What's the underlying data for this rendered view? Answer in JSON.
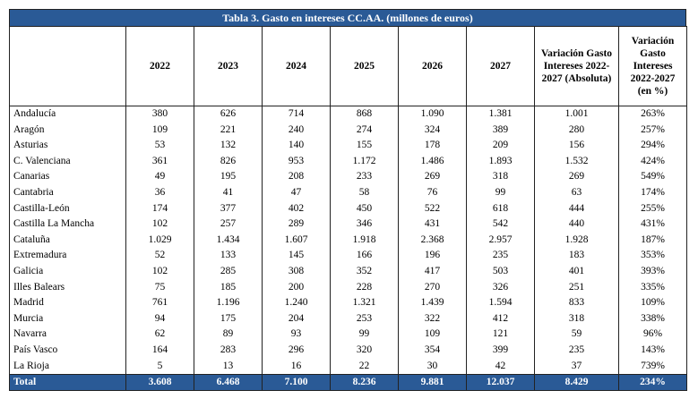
{
  "title": "Tabla 3. Gasto en intereses CC.AA. (millones de euros)",
  "columns": [
    "",
    "2022",
    "2023",
    "2024",
    "2025",
    "2026",
    "2027",
    "Variación Gasto Intereses 2022-2027 (Absoluta)",
    "Variación Gasto Intereses 2022-2027 (en %)"
  ],
  "rows": [
    {
      "name": "Andalucía",
      "values": [
        "380",
        "626",
        "714",
        "868",
        "1.090",
        "1.381",
        "1.001",
        "263%"
      ]
    },
    {
      "name": "Aragón",
      "values": [
        "109",
        "221",
        "240",
        "274",
        "324",
        "389",
        "280",
        "257%"
      ]
    },
    {
      "name": "Asturias",
      "values": [
        "53",
        "132",
        "140",
        "155",
        "178",
        "209",
        "156",
        "294%"
      ]
    },
    {
      "name": "C. Valenciana",
      "values": [
        "361",
        "826",
        "953",
        "1.172",
        "1.486",
        "1.893",
        "1.532",
        "424%"
      ]
    },
    {
      "name": "Canarias",
      "values": [
        "49",
        "195",
        "208",
        "233",
        "269",
        "318",
        "269",
        "549%"
      ]
    },
    {
      "name": "Cantabria",
      "values": [
        "36",
        "41",
        "47",
        "58",
        "76",
        "99",
        "63",
        "174%"
      ]
    },
    {
      "name": "Castilla-León",
      "values": [
        "174",
        "377",
        "402",
        "450",
        "522",
        "618",
        "444",
        "255%"
      ]
    },
    {
      "name": "Castilla La Mancha",
      "values": [
        "102",
        "257",
        "289",
        "346",
        "431",
        "542",
        "440",
        "431%"
      ]
    },
    {
      "name": "Cataluña",
      "values": [
        "1.029",
        "1.434",
        "1.607",
        "1.918",
        "2.368",
        "2.957",
        "1.928",
        "187%"
      ]
    },
    {
      "name": "Extremadura",
      "values": [
        "52",
        "133",
        "145",
        "166",
        "196",
        "235",
        "183",
        "353%"
      ]
    },
    {
      "name": "Galicia",
      "values": [
        "102",
        "285",
        "308",
        "352",
        "417",
        "503",
        "401",
        "393%"
      ]
    },
    {
      "name": "Illes Balears",
      "values": [
        "75",
        "185",
        "200",
        "228",
        "270",
        "326",
        "251",
        "335%"
      ]
    },
    {
      "name": "Madrid",
      "values": [
        "761",
        "1.196",
        "1.240",
        "1.321",
        "1.439",
        "1.594",
        "833",
        "109%"
      ]
    },
    {
      "name": "Murcia",
      "values": [
        "94",
        "175",
        "204",
        "253",
        "322",
        "412",
        "318",
        "338%"
      ]
    },
    {
      "name": "Navarra",
      "values": [
        "62",
        "89",
        "93",
        "99",
        "109",
        "121",
        "59",
        "96%"
      ]
    },
    {
      "name": "País Vasco",
      "values": [
        "164",
        "283",
        "296",
        "320",
        "354",
        "399",
        "235",
        "143%"
      ]
    },
    {
      "name": "La Rioja",
      "values": [
        "5",
        "13",
        "16",
        "22",
        "30",
        "42",
        "37",
        "739%"
      ]
    }
  ],
  "total": {
    "name": "Total",
    "values": [
      "3.608",
      "6.468",
      "7.100",
      "8.236",
      "9.881",
      "12.037",
      "8.429",
      "234%"
    ]
  },
  "colors": {
    "header_bg": "#2a5a96",
    "header_text": "#ffffff"
  }
}
